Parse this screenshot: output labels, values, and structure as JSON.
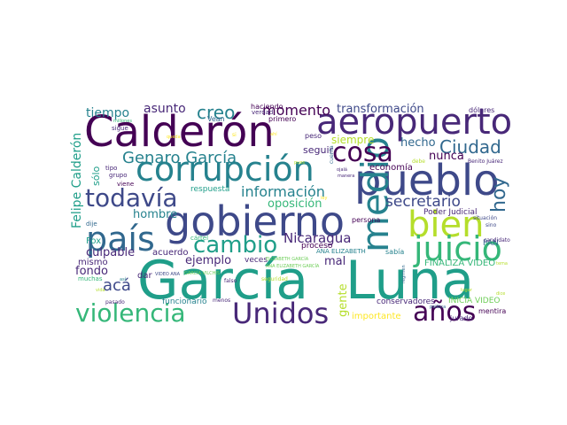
{
  "palette": {
    "p0": "#440154",
    "p1": "#482878",
    "p2": "#3e4989",
    "p3": "#31688e",
    "p4": "#26828e",
    "p5": "#1f9e89",
    "p6": "#35b779",
    "p7": "#6ece58",
    "p8": "#b5de2b",
    "p9": "#fde725"
  },
  "words": [
    {
      "text": "García",
      "c": "p5"
    },
    {
      "text": "Luna",
      "c": "p5"
    },
    {
      "text": "Calderón",
      "c": "p0"
    },
    {
      "text": "pueblo",
      "c": "p2"
    },
    {
      "text": "gobierno",
      "c": "p2"
    },
    {
      "text": "aeropuerto",
      "c": "p1"
    },
    {
      "text": "corrupción",
      "c": "p4"
    },
    {
      "text": "bien",
      "c": "p8"
    },
    {
      "text": "juicio",
      "c": "p6"
    },
    {
      "text": "país",
      "c": "p3"
    },
    {
      "text": "medio",
      "c": "p4"
    },
    {
      "text": "Unidos",
      "c": "p1"
    },
    {
      "text": "violencia",
      "c": "p6"
    },
    {
      "text": "cosa",
      "c": "p0"
    },
    {
      "text": "todavía",
      "c": "p2"
    },
    {
      "text": "años",
      "c": "p0"
    },
    {
      "text": "cambio",
      "c": "p5"
    },
    {
      "text": "Genaro García",
      "c": "p4"
    },
    {
      "text": "hoy",
      "c": "p3"
    },
    {
      "text": "Ciudad",
      "c": "p3"
    },
    {
      "text": "creo",
      "c": "p4"
    },
    {
      "text": "información",
      "c": "p4"
    },
    {
      "text": "secretario",
      "c": "p2"
    },
    {
      "text": "momento",
      "c": "p0"
    },
    {
      "text": "transformación",
      "c": "p2"
    },
    {
      "text": "asunto",
      "c": "p1"
    },
    {
      "text": "tiempo",
      "c": "p4"
    },
    {
      "text": "Felipe Calderón",
      "c": "p5"
    },
    {
      "text": "acá",
      "c": "p2"
    },
    {
      "text": "Nicaragua",
      "c": "p1"
    },
    {
      "text": "gente",
      "c": "p8"
    },
    {
      "text": "oposición",
      "c": "p6"
    },
    {
      "text": "hombre",
      "c": "p4"
    },
    {
      "text": "culpable",
      "c": "p1"
    },
    {
      "text": "ejemplo",
      "c": "p1"
    },
    {
      "text": "fondo",
      "c": "p1"
    },
    {
      "text": "hecho",
      "c": "p3"
    },
    {
      "text": "siempre",
      "c": "p8"
    },
    {
      "text": "nunca",
      "c": "p0"
    },
    {
      "text": "sólo",
      "c": "p5"
    },
    {
      "text": "mal",
      "c": "p1"
    },
    {
      "text": "seguir",
      "c": "p1"
    },
    {
      "text": "respuesta",
      "c": "p5"
    },
    {
      "text": "economía",
      "c": "p0"
    },
    {
      "text": "Poder Judicial",
      "c": "p1"
    },
    {
      "text": "proceso",
      "c": "p0"
    },
    {
      "text": "acuerdo",
      "c": "p1"
    },
    {
      "text": "Fox",
      "c": "p5"
    },
    {
      "text": "mismo",
      "c": "p1"
    },
    {
      "text": "dar",
      "c": "p1"
    },
    {
      "text": "veces",
      "c": "p1"
    },
    {
      "text": "FINALIZA VIDEO",
      "c": "p6"
    },
    {
      "text": "INICIA VIDEO",
      "c": "p7"
    },
    {
      "text": "conservadores",
      "c": "p1"
    },
    {
      "text": "importante",
      "c": "p9"
    },
    {
      "text": "mentira",
      "c": "p0"
    },
    {
      "text": "jurado",
      "c": "p1"
    },
    {
      "text": "funcionario",
      "c": "p4"
    },
    {
      "text": "PAN",
      "c": "p3"
    },
    {
      "text": "dólares",
      "c": "p1"
    },
    {
      "text": "peso",
      "c": "p1"
    },
    {
      "text": "primero",
      "c": "p0"
    },
    {
      "text": "haciendo",
      "c": "p0"
    },
    {
      "text": "verdad",
      "c": "p1"
    },
    {
      "text": "sigue",
      "c": "p1"
    },
    {
      "text": "tipo",
      "c": "p1"
    },
    {
      "text": "grupo",
      "c": "p1"
    },
    {
      "text": "viene",
      "c": "p0"
    },
    {
      "text": "persona",
      "c": "p0"
    },
    {
      "text": "sabía",
      "c": "p4"
    },
    {
      "text": "ANA ELIZABETH",
      "c": "p4"
    },
    {
      "text": "cártel",
      "c": "p6"
    },
    {
      "text": "Vean",
      "c": "p3"
    },
    {
      "text": "dije",
      "c": "p3"
    },
    {
      "text": "muchas",
      "c": "p6"
    },
    {
      "text": "pasado",
      "c": "p1"
    },
    {
      "text": "menos",
      "c": "p1"
    },
    {
      "text": "falso",
      "c": "p1"
    },
    {
      "text": "seguridad",
      "c": "p8"
    },
    {
      "text": "situación",
      "c": "p2"
    },
    {
      "text": "sino",
      "c": "p2"
    },
    {
      "text": "debe",
      "c": "p8"
    },
    {
      "text": "Benito Juárez",
      "c": "p1"
    },
    {
      "text": "candidato",
      "c": "p1"
    },
    {
      "text": "régimen",
      "c": "p3"
    },
    {
      "text": "política",
      "c": "p3"
    },
    {
      "text": "cuenta",
      "c": "p3"
    },
    {
      "text": "ojalá",
      "c": "p1"
    },
    {
      "text": "manera",
      "c": "p1"
    },
    {
      "text": "millones",
      "c": "p6"
    },
    {
      "text": "así",
      "c": "p4"
    },
    {
      "text": "VIDEO ANA",
      "c": "p2"
    },
    {
      "text": "ANA ELIZABETH GARCÍA",
      "c": "p7"
    },
    {
      "text": "GARCÍA VILCHIS",
      "c": "p7"
    },
    {
      "text": "ELIZABETH GARCÍA",
      "c": "p7"
    },
    {
      "text": "si",
      "c": "p9"
    },
    {
      "text": "ley",
      "c": "p9"
    },
    {
      "text": "queda",
      "c": "p9"
    },
    {
      "text": "ahí",
      "c": "p9"
    },
    {
      "text": "pues",
      "c": "p8"
    },
    {
      "text": "dice",
      "c": "p8"
    },
    {
      "text": "tema",
      "c": "p8"
    },
    {
      "text": "vida",
      "c": "p8"
    },
    {
      "text": "lugar",
      "c": "p8"
    }
  ]
}
